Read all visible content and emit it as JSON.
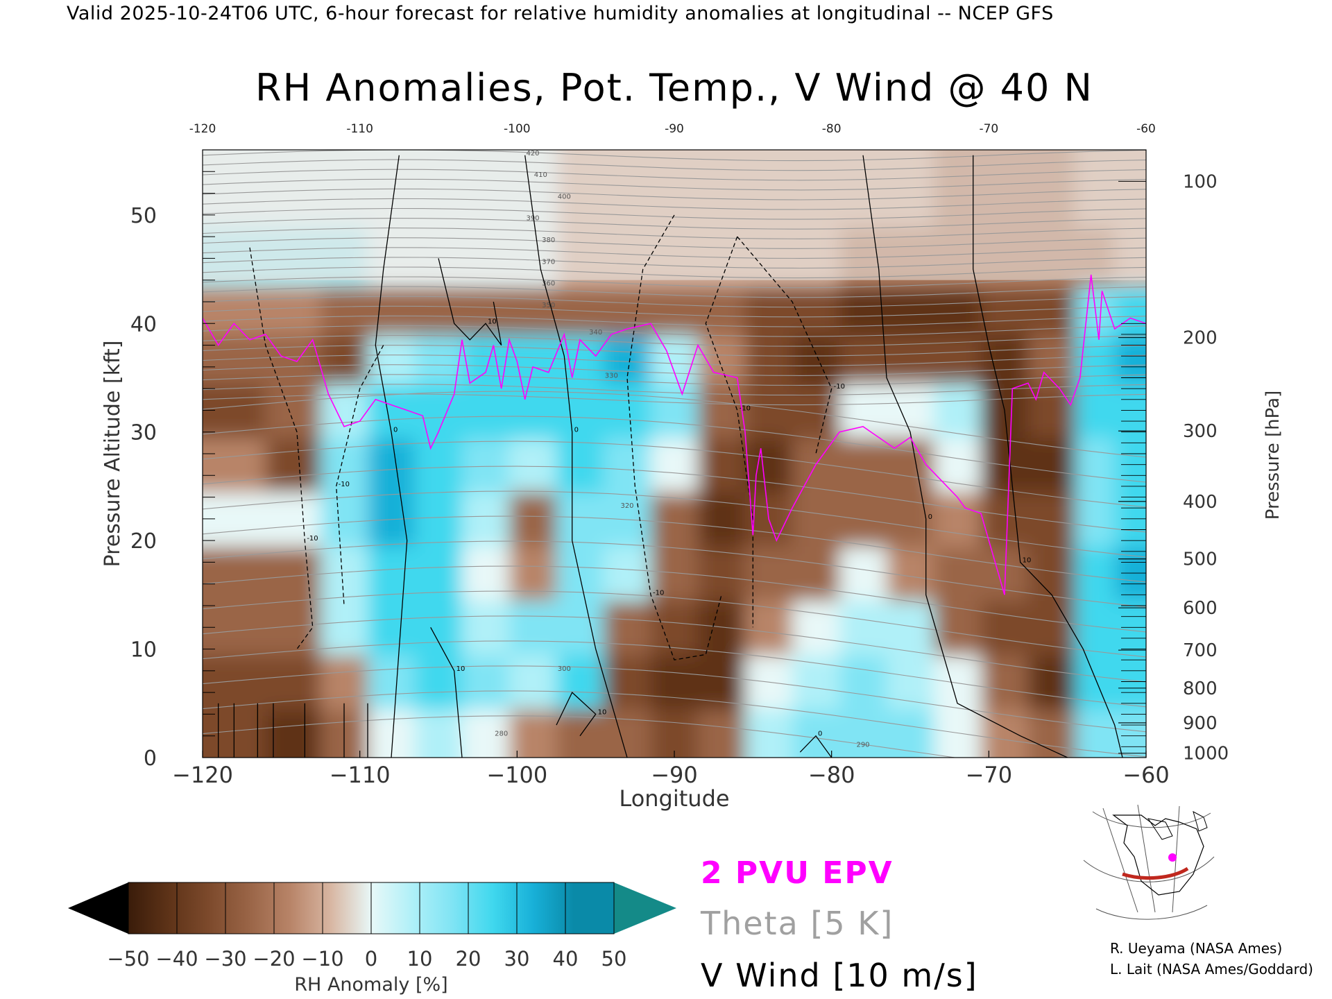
{
  "header": {
    "top_line": "Valid 2025-10-24T06 UTC, 6-hour forecast for relative humidity anomalies at longitudinal -- NCEP GFS"
  },
  "chart_data": {
    "type": "heatmap",
    "title": "RH Anomalies, Pot. Temp., V Wind @ 40 N",
    "xlabel": "Longitude",
    "ylabel_left": "Pressure Altitude [kft]",
    "ylabel_right": "Pressure [hPa]",
    "xlim": [
      -120,
      -60
    ],
    "ylim": [
      0,
      56
    ],
    "x_ticks": [
      -120,
      -110,
      -100,
      -90,
      -80,
      -70,
      -60
    ],
    "x_tick_labels": [
      "−120",
      "−110",
      "−100",
      "−90",
      "−80",
      "−70",
      "−60"
    ],
    "top_tick_labels": [
      "-120",
      "-110",
      "-100",
      "-90",
      "-80",
      "-70",
      "-60"
    ],
    "y_ticks": [
      0,
      10,
      20,
      30,
      40,
      50
    ],
    "pressure_ticks": [
      {
        "label": "100",
        "kft": 53.1
      },
      {
        "label": "200",
        "kft": 38.7
      },
      {
        "label": "300",
        "kft": 30.1
      },
      {
        "label": "400",
        "kft": 23.6
      },
      {
        "label": "500",
        "kft": 18.3
      },
      {
        "label": "600",
        "kft": 13.8
      },
      {
        "label": "700",
        "kft": 9.9
      },
      {
        "label": "800",
        "kft": 6.4
      },
      {
        "label": "900",
        "kft": 3.2
      },
      {
        "label": "1000",
        "kft": 0.4
      }
    ],
    "rh_anomaly_columns": [
      {
        "lon": -118,
        "values": [
          -30,
          -25,
          -20,
          -15,
          10,
          -10,
          -25,
          -20,
          -10,
          20,
          10
        ]
      },
      {
        "lon": -114,
        "values": [
          -35,
          -30,
          -15,
          -20,
          10,
          -25,
          -20,
          -15,
          -10,
          20,
          10
        ]
      },
      {
        "lon": -111,
        "values": [
          -20,
          -10,
          20,
          25,
          30,
          30,
          20,
          -25,
          -15,
          20,
          10
        ]
      },
      {
        "lon": -108,
        "values": [
          10,
          30,
          40,
          45,
          50,
          50,
          40,
          20,
          -20,
          15,
          10
        ]
      },
      {
        "lon": -105,
        "values": [
          20,
          40,
          45,
          45,
          40,
          45,
          40,
          35,
          -15,
          15,
          10
        ]
      },
      {
        "lon": -102,
        "values": [
          10,
          30,
          20,
          10,
          20,
          35,
          45,
          40,
          -15,
          10,
          10
        ]
      },
      {
        "lon": -99,
        "values": [
          -10,
          20,
          30,
          -10,
          -15,
          20,
          40,
          40,
          -15,
          10,
          10
        ]
      },
      {
        "lon": -96,
        "values": [
          -15,
          45,
          30,
          35,
          30,
          40,
          45,
          45,
          -15,
          5,
          5
        ]
      },
      {
        "lon": -93,
        "values": [
          -15,
          -25,
          -15,
          25,
          30,
          35,
          40,
          50,
          -15,
          5,
          5
        ]
      },
      {
        "lon": -90,
        "values": [
          -30,
          -35,
          -25,
          -20,
          -15,
          10,
          30,
          20,
          -15,
          0,
          0
        ]
      },
      {
        "lon": -87,
        "values": [
          -20,
          -40,
          -35,
          -25,
          -35,
          -30,
          -20,
          -10,
          -20,
          0,
          0
        ]
      },
      {
        "lon": -84,
        "values": [
          25,
          10,
          -10,
          -20,
          -30,
          -35,
          -30,
          -25,
          -25,
          0,
          0
        ]
      },
      {
        "lon": -81,
        "values": [
          30,
          25,
          10,
          -15,
          -20,
          -15,
          -25,
          -35,
          -30,
          0,
          0
        ]
      },
      {
        "lon": -78,
        "values": [
          35,
          30,
          20,
          10,
          -15,
          -20,
          15,
          -30,
          -35,
          -5,
          0
        ]
      },
      {
        "lon": -75,
        "values": [
          30,
          25,
          20,
          -10,
          -20,
          -15,
          15,
          -25,
          -40,
          -5,
          0
        ]
      },
      {
        "lon": -72,
        "values": [
          10,
          10,
          -15,
          -15,
          -10,
          10,
          20,
          -30,
          -40,
          -10,
          -5
        ]
      },
      {
        "lon": -69,
        "values": [
          -10,
          -20,
          -30,
          -20,
          -25,
          -35,
          -35,
          -35,
          -30,
          -10,
          -5
        ]
      },
      {
        "lon": -66,
        "values": [
          -20,
          -35,
          -30,
          -25,
          -30,
          -35,
          -25,
          -20,
          -25,
          -10,
          -5
        ]
      },
      {
        "lon": -63,
        "values": [
          30,
          40,
          40,
          40,
          35,
          35,
          40,
          45,
          35,
          -5,
          0
        ]
      },
      {
        "lon": -61,
        "values": [
          35,
          45,
          45,
          50,
          45,
          40,
          45,
          50,
          40,
          5,
          0
        ]
      }
    ],
    "rh_levels_kft": [
      2,
      7,
      12,
      17,
      22,
      27,
      32,
      37,
      41,
      46,
      52
    ],
    "theta_labels": [
      {
        "label": "280",
        "lon": -101,
        "kft": 2
      },
      {
        "label": "290",
        "lon": -78,
        "kft": 1
      },
      {
        "label": "300",
        "lon": -97,
        "kft": 8
      },
      {
        "label": "320",
        "lon": -93,
        "kft": 23
      },
      {
        "label": "330",
        "lon": -94,
        "kft": 35
      },
      {
        "label": "340",
        "lon": -95,
        "kft": 39
      },
      {
        "label": "350",
        "lon": -98,
        "kft": 41.5
      },
      {
        "label": "360",
        "lon": -98,
        "kft": 43.5
      },
      {
        "label": "370",
        "lon": -98,
        "kft": 45.5
      },
      {
        "label": "380",
        "lon": -98,
        "kft": 47.5
      },
      {
        "label": "390",
        "lon": -99,
        "kft": 49.5
      },
      {
        "label": "400",
        "lon": -97,
        "kft": 51.5
      },
      {
        "label": "410",
        "lon": -98.5,
        "kft": 53.5
      },
      {
        "label": "420",
        "lon": -99,
        "kft": 55.5
      }
    ],
    "epv_2pvu_line": [
      [
        -120,
        40.5
      ],
      [
        -119,
        38
      ],
      [
        -118,
        40
      ],
      [
        -117,
        38.5
      ],
      [
        -116,
        39
      ],
      [
        -115,
        37
      ],
      [
        -114,
        36.5
      ],
      [
        -113,
        38.5
      ],
      [
        -112,
        33.5
      ],
      [
        -111,
        30.5
      ],
      [
        -110,
        31
      ],
      [
        -109,
        33
      ],
      [
        -108,
        32.5
      ],
      [
        -107,
        32
      ],
      [
        -106,
        31.5
      ],
      [
        -105.5,
        28.5
      ],
      [
        -105,
        30
      ],
      [
        -104,
        33.5
      ],
      [
        -103.5,
        38.5
      ],
      [
        -103,
        34.5
      ],
      [
        -102,
        35.5
      ],
      [
        -101.5,
        38
      ],
      [
        -101,
        34
      ],
      [
        -100.5,
        38.5
      ],
      [
        -100,
        36.5
      ],
      [
        -99.5,
        33
      ],
      [
        -99,
        36
      ],
      [
        -98,
        35.5
      ],
      [
        -97,
        39
      ],
      [
        -96.5,
        35
      ],
      [
        -96,
        38.5
      ],
      [
        -95,
        37
      ],
      [
        -94,
        39
      ],
      [
        -93,
        39.5
      ],
      [
        -91.5,
        40
      ],
      [
        -90.5,
        37.5
      ],
      [
        -89.5,
        33.5
      ],
      [
        -88.5,
        38
      ],
      [
        -87.5,
        35.5
      ],
      [
        -86,
        35
      ],
      [
        -85.5,
        30
      ],
      [
        -85,
        20.5
      ],
      [
        -84.8,
        26
      ],
      [
        -84.5,
        28.5
      ],
      [
        -84,
        22
      ],
      [
        -83.5,
        20
      ],
      [
        -82.5,
        23
      ],
      [
        -81,
        27
      ],
      [
        -79.5,
        30
      ],
      [
        -78,
        30.5
      ],
      [
        -77,
        29.5
      ],
      [
        -76,
        28.5
      ],
      [
        -75,
        29.5
      ],
      [
        -74,
        27
      ],
      [
        -73,
        25.5
      ],
      [
        -72,
        24
      ],
      [
        -71.5,
        23
      ],
      [
        -70.5,
        22.5
      ],
      [
        -69.5,
        17.5
      ],
      [
        -69,
        15
      ],
      [
        -68.5,
        34
      ],
      [
        -67.5,
        34.5
      ],
      [
        -67,
        33
      ],
      [
        -66.5,
        35.5
      ],
      [
        -65.5,
        34
      ],
      [
        -64.8,
        32.5
      ],
      [
        -64.2,
        35
      ],
      [
        -63.5,
        44.5
      ],
      [
        -63,
        38.5
      ],
      [
        -62.8,
        43
      ],
      [
        -62,
        39.5
      ],
      [
        -61,
        40.5
      ],
      [
        -60,
        40
      ]
    ],
    "v_wind_contours": [
      {
        "label": "0",
        "style": "solid",
        "points": [
          [
            -107.5,
            55.5
          ],
          [
            -108.5,
            45
          ],
          [
            -109,
            38
          ],
          [
            -108,
            30
          ],
          [
            -107,
            20
          ],
          [
            -107.5,
            10
          ],
          [
            -108,
            0
          ]
        ]
      },
      {
        "label": "0",
        "style": "solid",
        "points": [
          [
            -99.5,
            55.5
          ],
          [
            -98.5,
            45
          ],
          [
            -97,
            37
          ],
          [
            -96.5,
            30
          ],
          [
            -96.5,
            20
          ],
          [
            -95,
            10
          ],
          [
            -93,
            0
          ]
        ]
      },
      {
        "label": "10",
        "style": "solid",
        "points": [
          [
            -105,
            46
          ],
          [
            -104,
            40
          ],
          [
            -103,
            38.5
          ],
          [
            -102,
            40
          ],
          [
            -101,
            38
          ],
          [
            -101.5,
            42
          ]
        ]
      },
      {
        "label": "10",
        "style": "solid",
        "points": [
          [
            -105.5,
            12
          ],
          [
            -104,
            8
          ],
          [
            -103.5,
            0
          ]
        ]
      },
      {
        "label": "0",
        "style": "solid",
        "points": [
          [
            -78,
            55.5
          ],
          [
            -77,
            45
          ],
          [
            -76.5,
            35
          ],
          [
            -75,
            30
          ],
          [
            -74,
            22
          ],
          [
            -74,
            15
          ],
          [
            -72,
            5
          ],
          [
            -68,
            2
          ],
          [
            -65,
            0
          ]
        ]
      },
      {
        "label": "10",
        "style": "solid",
        "points": [
          [
            -71,
            55.5
          ],
          [
            -71,
            45
          ],
          [
            -70,
            38
          ],
          [
            -69,
            32
          ],
          [
            -68.5,
            25
          ],
          [
            -68,
            18
          ],
          [
            -66,
            15
          ],
          [
            -64,
            10
          ],
          [
            -62,
            3
          ],
          [
            -61.5,
            0
          ]
        ]
      },
      {
        "label": "0",
        "style": "solid",
        "points": [
          [
            -82,
            0.5
          ],
          [
            -81,
            2
          ],
          [
            -80,
            0
          ]
        ]
      },
      {
        "label": "10",
        "style": "solid",
        "points": [
          [
            -97.5,
            3
          ],
          [
            -96.5,
            6
          ],
          [
            -95,
            4
          ],
          [
            -96,
            2
          ]
        ]
      },
      {
        "label": "-10",
        "style": "dashed",
        "points": [
          [
            -117,
            47
          ],
          [
            -116,
            38
          ],
          [
            -114,
            30
          ],
          [
            -113.5,
            20
          ],
          [
            -113,
            12
          ],
          [
            -114,
            10
          ]
        ]
      },
      {
        "label": "-10",
        "style": "dashed",
        "points": [
          [
            -108.5,
            38
          ],
          [
            -110,
            34
          ],
          [
            -111.5,
            25
          ],
          [
            -111,
            14
          ]
        ]
      },
      {
        "label": "-10",
        "style": "dashed",
        "points": [
          [
            -90,
            50
          ],
          [
            -92,
            45
          ],
          [
            -93,
            35
          ],
          [
            -92.5,
            25
          ],
          [
            -91.5,
            15
          ],
          [
            -90,
            9
          ],
          [
            -88,
            9.5
          ],
          [
            -87,
            15
          ]
        ]
      },
      {
        "label": "-10",
        "style": "dashed",
        "points": [
          [
            -86,
            48
          ],
          [
            -88,
            40
          ],
          [
            -86,
            32
          ],
          [
            -85,
            22
          ],
          [
            -85,
            12
          ]
        ]
      },
      {
        "label": "-10",
        "style": "dashed",
        "points": [
          [
            -86,
            48
          ],
          [
            -82.5,
            42
          ],
          [
            -80,
            34
          ],
          [
            -81,
            28
          ]
        ]
      }
    ]
  },
  "colorbar": {
    "ticks": [
      "−50",
      "−40",
      "−30",
      "−20",
      "−10",
      "0",
      "10",
      "20",
      "30",
      "40",
      "50"
    ],
    "label": "RH Anomaly [%]",
    "colors": [
      "#3a1c0a",
      "#5e3318",
      "#7d4a2c",
      "#9a6547",
      "#b88468",
      "#d8b6a2",
      "#e8f8f8",
      "#b0f0f8",
      "#80e4f4",
      "#40d8ee",
      "#18b0d8",
      "#0a8aa8"
    ],
    "low_extend_color": "#000000",
    "high_extend_color": "#148a88"
  },
  "legend": {
    "epv": {
      "label": "2 PVU EPV",
      "color": "#ff00ff"
    },
    "theta": {
      "label": "Theta [5 K]",
      "color": "#a0a0a0"
    },
    "vwind": {
      "label": "V Wind [10 m/s]",
      "color": "#000000"
    }
  },
  "credits": {
    "line1": "R. Ueyama (NASA Ames)",
    "line2": "L. Lait (NASA Ames/Goddard)"
  },
  "inset_map": {
    "section_color": "#c0281e",
    "marker_color": "#ff00ff"
  }
}
